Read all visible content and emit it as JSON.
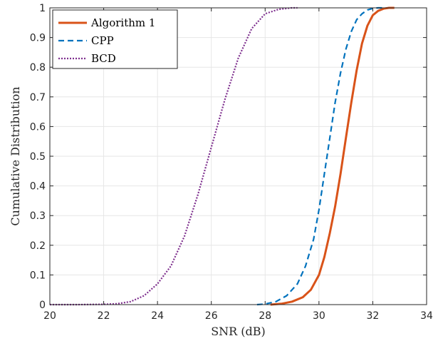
{
  "chart_data": {
    "type": "line",
    "xlabel": "SNR (dB)",
    "ylabel": "Cumulative Distribution",
    "xlim": [
      20,
      34
    ],
    "ylim": [
      0,
      1
    ],
    "x_ticks": [
      "20",
      "22",
      "24",
      "26",
      "28",
      "30",
      "32",
      "34"
    ],
    "y_ticks": [
      "0",
      "0.1",
      "0.2",
      "0.3",
      "0.4",
      "0.5",
      "0.6",
      "0.7",
      "0.8",
      "0.9",
      "1"
    ],
    "grid": true,
    "legend_position": "top-left",
    "series": [
      {
        "name": "Algorithm 1",
        "color": "#D95319",
        "style": "solid",
        "x": [
          28.2,
          28.6,
          29.0,
          29.4,
          29.7,
          30.0,
          30.2,
          30.4,
          30.6,
          30.8,
          31.0,
          31.2,
          31.4,
          31.6,
          31.8,
          32.0,
          32.2,
          32.4,
          32.6,
          32.8
        ],
        "y": [
          0,
          0.003,
          0.01,
          0.025,
          0.05,
          0.1,
          0.16,
          0.24,
          0.33,
          0.44,
          0.56,
          0.68,
          0.79,
          0.88,
          0.94,
          0.975,
          0.99,
          0.997,
          1.0,
          1.0
        ]
      },
      {
        "name": "CPP",
        "color": "#0072BD",
        "style": "dashed",
        "x": [
          27.7,
          28.0,
          28.4,
          28.8,
          29.2,
          29.5,
          29.8,
          30.0,
          30.2,
          30.4,
          30.6,
          30.8,
          31.0,
          31.2,
          31.4,
          31.6,
          31.8,
          32.0,
          32.2,
          32.4
        ],
        "y": [
          0,
          0.002,
          0.01,
          0.03,
          0.07,
          0.13,
          0.22,
          0.32,
          0.44,
          0.56,
          0.68,
          0.78,
          0.86,
          0.92,
          0.96,
          0.98,
          0.993,
          0.998,
          1.0,
          1.0
        ]
      },
      {
        "name": "BCD",
        "color": "#7E2F8E",
        "style": "dotted",
        "x": [
          20.0,
          21.0,
          22.0,
          22.5,
          23.0,
          23.5,
          24.0,
          24.5,
          25.0,
          25.5,
          26.0,
          26.5,
          27.0,
          27.5,
          28.0,
          28.5,
          29.0,
          29.2
        ],
        "y": [
          0,
          0.0,
          0.001,
          0.003,
          0.01,
          0.03,
          0.07,
          0.13,
          0.23,
          0.37,
          0.53,
          0.69,
          0.83,
          0.93,
          0.98,
          0.995,
          1.0,
          1.0
        ]
      }
    ]
  }
}
